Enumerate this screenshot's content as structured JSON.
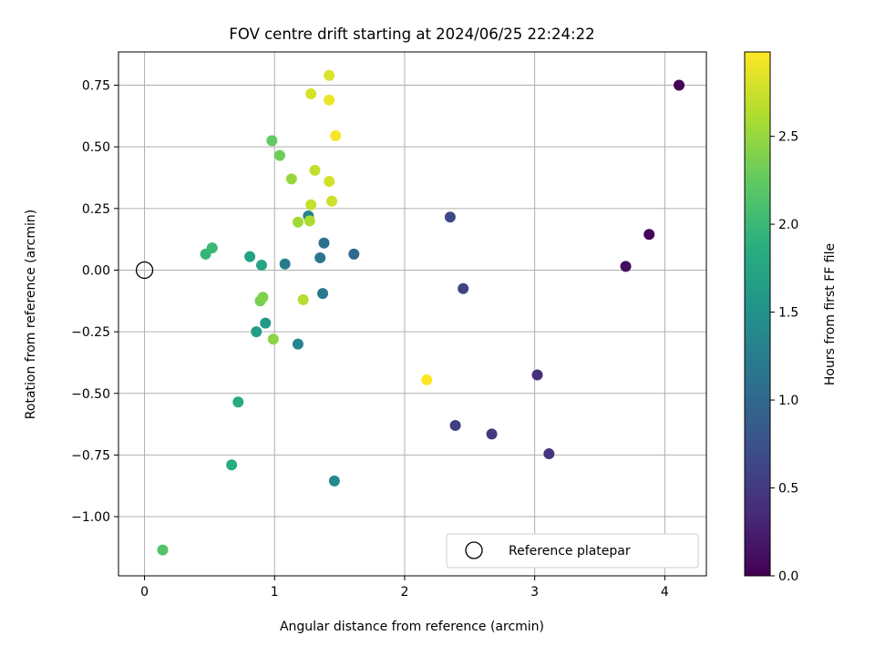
{
  "chart_data": {
    "type": "scatter",
    "title": "FOV centre drift starting at 2024/06/25 22:24:22",
    "xlabel": "Angular distance from reference (arcmin)",
    "ylabel": "Rotation from reference (arcmin)",
    "xlim": [
      -0.2,
      4.32
    ],
    "ylim": [
      -1.24,
      0.885
    ],
    "xticks": [
      0,
      1,
      2,
      3,
      4
    ],
    "xtick_labels": [
      "0",
      "1",
      "2",
      "3",
      "4"
    ],
    "yticks": [
      0.75,
      0.5,
      0.25,
      0.0,
      -0.25,
      -0.5,
      -0.75,
      -1.0
    ],
    "ytick_labels": [
      "0.75",
      "0.50",
      "0.25",
      "0.00",
      "−0.25",
      "−0.50",
      "−0.75",
      "−1.00"
    ],
    "grid": true,
    "colormap": "viridis",
    "colorbar": {
      "label": "Hours from first FF file",
      "range": [
        0.0,
        2.98
      ],
      "ticks": [
        0.0,
        0.5,
        1.0,
        1.5,
        2.0,
        2.5
      ],
      "tick_labels": [
        "0.0",
        "0.5",
        "1.0",
        "1.5",
        "2.0",
        "2.5"
      ]
    },
    "reference": {
      "x": 0.0,
      "y": 0.0,
      "marker": "open-circle",
      "label": "Reference platepar"
    },
    "legend": {
      "location": "lower-right",
      "entries": [
        "Reference platepar"
      ]
    },
    "points": [
      {
        "x": 4.11,
        "y": 0.75,
        "c": 0.0
      },
      {
        "x": 3.88,
        "y": 0.145,
        "c": 0.05
      },
      {
        "x": 3.7,
        "y": 0.015,
        "c": 0.1
      },
      {
        "x": 3.02,
        "y": -0.425,
        "c": 0.4
      },
      {
        "x": 3.11,
        "y": -0.745,
        "c": 0.45
      },
      {
        "x": 2.67,
        "y": -0.665,
        "c": 0.5
      },
      {
        "x": 2.39,
        "y": -0.63,
        "c": 0.55
      },
      {
        "x": 2.45,
        "y": -0.075,
        "c": 0.6
      },
      {
        "x": 2.35,
        "y": 0.215,
        "c": 0.65
      },
      {
        "x": 1.61,
        "y": 0.065,
        "c": 1.0
      },
      {
        "x": 1.38,
        "y": 0.11,
        "c": 1.1
      },
      {
        "x": 1.35,
        "y": 0.05,
        "c": 1.15
      },
      {
        "x": 1.37,
        "y": -0.095,
        "c": 1.2
      },
      {
        "x": 1.08,
        "y": 0.025,
        "c": 1.25
      },
      {
        "x": 1.26,
        "y": 0.22,
        "c": 1.3
      },
      {
        "x": 1.18,
        "y": -0.3,
        "c": 1.35
      },
      {
        "x": 1.46,
        "y": -0.855,
        "c": 1.4
      },
      {
        "x": 0.93,
        "y": -0.215,
        "c": 1.6
      },
      {
        "x": 0.86,
        "y": -0.25,
        "c": 1.65
      },
      {
        "x": 0.81,
        "y": 0.055,
        "c": 1.7
      },
      {
        "x": 0.9,
        "y": 0.02,
        "c": 1.75
      },
      {
        "x": 0.72,
        "y": -0.535,
        "c": 1.8
      },
      {
        "x": 0.67,
        "y": -0.79,
        "c": 1.85
      },
      {
        "x": 0.47,
        "y": 0.065,
        "c": 1.95
      },
      {
        "x": 0.52,
        "y": 0.09,
        "c": 2.0
      },
      {
        "x": 0.14,
        "y": -1.135,
        "c": 2.15
      },
      {
        "x": 0.98,
        "y": 0.525,
        "c": 2.25
      },
      {
        "x": 1.04,
        "y": 0.465,
        "c": 2.3
      },
      {
        "x": 0.89,
        "y": -0.125,
        "c": 2.35
      },
      {
        "x": 0.91,
        "y": -0.11,
        "c": 2.4
      },
      {
        "x": 0.99,
        "y": -0.28,
        "c": 2.45
      },
      {
        "x": 1.13,
        "y": 0.37,
        "c": 2.5
      },
      {
        "x": 1.18,
        "y": 0.195,
        "c": 2.55
      },
      {
        "x": 1.27,
        "y": 0.2,
        "c": 2.6
      },
      {
        "x": 1.22,
        "y": -0.12,
        "c": 2.65
      },
      {
        "x": 1.31,
        "y": 0.405,
        "c": 2.7
      },
      {
        "x": 1.28,
        "y": 0.265,
        "c": 2.72
      },
      {
        "x": 1.44,
        "y": 0.28,
        "c": 2.75
      },
      {
        "x": 1.42,
        "y": 0.36,
        "c": 2.78
      },
      {
        "x": 1.28,
        "y": 0.715,
        "c": 2.8
      },
      {
        "x": 1.42,
        "y": 0.79,
        "c": 2.82
      },
      {
        "x": 1.42,
        "y": 0.69,
        "c": 2.9
      },
      {
        "x": 1.47,
        "y": 0.545,
        "c": 2.95
      },
      {
        "x": 2.17,
        "y": -0.445,
        "c": 2.98
      }
    ]
  }
}
